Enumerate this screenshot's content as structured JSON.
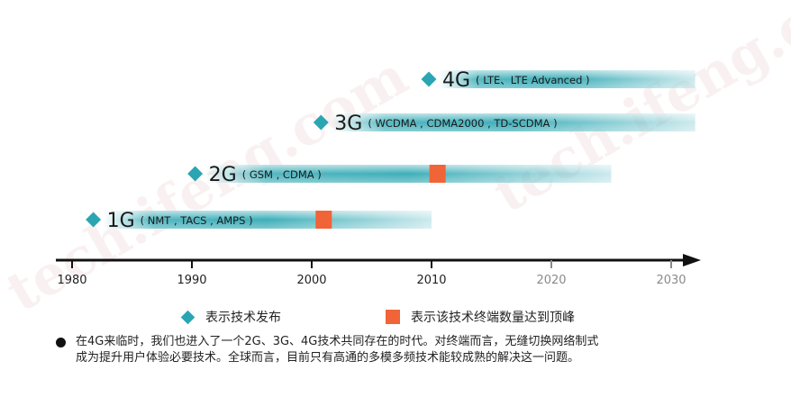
{
  "watermark": "tech.ifeng.com",
  "chart_data": {
    "type": "timeline",
    "title": "",
    "xlabel": "",
    "ylabel": "",
    "xlim": [
      1978,
      2034
    ],
    "ticks": [
      {
        "value": 1980,
        "label": "1980",
        "future": false
      },
      {
        "value": 1990,
        "label": "1990",
        "future": false
      },
      {
        "value": 2000,
        "label": "2000",
        "future": false
      },
      {
        "value": 2010,
        "label": "2010",
        "future": false
      },
      {
        "value": 2020,
        "label": "2020",
        "future": true
      },
      {
        "value": 2030,
        "label": "2030",
        "future": true
      }
    ],
    "series": [
      {
        "name": "1G",
        "techs": "( NMT , TACS , AMPS )",
        "release": 1982,
        "end": 2010,
        "peak": 2001,
        "level": 0
      },
      {
        "name": "2G",
        "techs": "( GSM , CDMA )",
        "release": 1990.5,
        "end": 2025,
        "peak": 2010.5,
        "level": 1
      },
      {
        "name": "3G",
        "techs": "( WCDMA , CDMA2000 , TD-SCDMA )",
        "release": 2001,
        "end": 2032,
        "peak": null,
        "level": 2
      },
      {
        "name": "4G",
        "techs": "( LTE、LTE Advanced )",
        "release": 2010,
        "end": 2032,
        "peak": null,
        "level": 3
      }
    ],
    "colors": {
      "bar": "#2aa6b2",
      "peak": "#f06437",
      "axis": "#111111",
      "future_tick": "#8a8a8a"
    }
  },
  "legend": {
    "release_label": "表示技术发布",
    "peak_label": "表示该技术终端数量达到顶峰"
  },
  "note": {
    "line1": "在4G来临时，我们也进入了一个2G、3G、4G技术共同存在的时代。对终端而言，无缝切换网络制式",
    "line2": "成为提升用户体验必要技术。全球而言，目前只有高通的多模多频技术能较成熟的解决这一问题。"
  }
}
